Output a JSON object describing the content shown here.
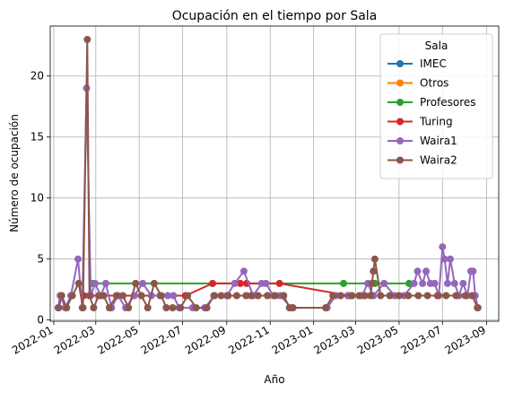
{
  "chart_data": {
    "type": "line",
    "title": "Ocupación en el tiempo por Sala",
    "xlabel": "Año",
    "ylabel": "Número de ocupación",
    "x_axis": "date",
    "xlim": [
      "2021-12-27",
      "2023-09-18"
    ],
    "ylim": [
      -0.1,
      24.1
    ],
    "x_ticks": [
      "2022-01",
      "2022-03",
      "2022-05",
      "2022-07",
      "2022-09",
      "2022-11",
      "2023-01",
      "2023-03",
      "2023-05",
      "2023-07",
      "2023-09"
    ],
    "y_ticks": [
      0,
      5,
      10,
      15,
      20
    ],
    "grid": true,
    "legend": {
      "title": "Sala",
      "placement": "top-right"
    },
    "series": [
      {
        "name": "IMEC",
        "color": "#1f77b4",
        "points": []
      },
      {
        "name": "Otros",
        "color": "#ff7f0e",
        "points": []
      },
      {
        "name": "Profesores",
        "color": "#2ca02c",
        "points": [
          {
            "x": "2022-02-25",
            "y": 3
          },
          {
            "x": "2023-02-12",
            "y": 3
          },
          {
            "x": "2023-03-28",
            "y": 3
          },
          {
            "x": "2023-05-15",
            "y": 3
          }
        ]
      },
      {
        "name": "Turing",
        "color": "#d62728",
        "points": [
          {
            "x": "2022-02-12",
            "y": 2
          },
          {
            "x": "2022-07-05",
            "y": 2
          },
          {
            "x": "2022-08-12",
            "y": 3
          },
          {
            "x": "2022-09-20",
            "y": 3
          },
          {
            "x": "2022-09-29",
            "y": 3
          },
          {
            "x": "2022-11-14",
            "y": 3
          },
          {
            "x": "2023-02-20",
            "y": 2
          }
        ]
      },
      {
        "name": "Waira1",
        "color": "#9467bd",
        "points": [
          {
            "x": "2022-01-07",
            "y": 1
          },
          {
            "x": "2022-01-10",
            "y": 2
          },
          {
            "x": "2022-01-17",
            "y": 1
          },
          {
            "x": "2022-01-25",
            "y": 2
          },
          {
            "x": "2022-02-04",
            "y": 5
          },
          {
            "x": "2022-02-10",
            "y": 1
          },
          {
            "x": "2022-02-16",
            "y": 19
          },
          {
            "x": "2022-02-22",
            "y": 2
          },
          {
            "x": "2022-02-28",
            "y": 3
          },
          {
            "x": "2022-03-08",
            "y": 2
          },
          {
            "x": "2022-03-15",
            "y": 3
          },
          {
            "x": "2022-03-23",
            "y": 1
          },
          {
            "x": "2022-04-01",
            "y": 2
          },
          {
            "x": "2022-04-12",
            "y": 1
          },
          {
            "x": "2022-04-24",
            "y": 2
          },
          {
            "x": "2022-05-06",
            "y": 3
          },
          {
            "x": "2022-05-18",
            "y": 2
          },
          {
            "x": "2022-05-30",
            "y": 2
          },
          {
            "x": "2022-06-10",
            "y": 2
          },
          {
            "x": "2022-06-18",
            "y": 2
          },
          {
            "x": "2022-06-26",
            "y": 1
          },
          {
            "x": "2022-07-15",
            "y": 1
          },
          {
            "x": "2022-08-01",
            "y": 1
          },
          {
            "x": "2022-08-15",
            "y": 2
          },
          {
            "x": "2022-09-01",
            "y": 2
          },
          {
            "x": "2022-09-12",
            "y": 3
          },
          {
            "x": "2022-09-25",
            "y": 4
          },
          {
            "x": "2022-10-08",
            "y": 2
          },
          {
            "x": "2022-10-20",
            "y": 3
          },
          {
            "x": "2022-10-26",
            "y": 3
          },
          {
            "x": "2022-11-05",
            "y": 2
          },
          {
            "x": "2022-11-15",
            "y": 2
          },
          {
            "x": "2022-12-01",
            "y": 1
          },
          {
            "x": "2023-01-20",
            "y": 1
          },
          {
            "x": "2023-02-01",
            "y": 2
          },
          {
            "x": "2023-02-18",
            "y": 2
          },
          {
            "x": "2023-03-10",
            "y": 2
          },
          {
            "x": "2023-03-18",
            "y": 3
          },
          {
            "x": "2023-03-26",
            "y": 2
          },
          {
            "x": "2023-04-10",
            "y": 3
          },
          {
            "x": "2023-04-25",
            "y": 2
          },
          {
            "x": "2023-05-08",
            "y": 2
          },
          {
            "x": "2023-05-22",
            "y": 3
          },
          {
            "x": "2023-05-27",
            "y": 4
          },
          {
            "x": "2023-06-03",
            "y": 3
          },
          {
            "x": "2023-06-08",
            "y": 4
          },
          {
            "x": "2023-06-14",
            "y": 3
          },
          {
            "x": "2023-06-20",
            "y": 3
          },
          {
            "x": "2023-06-26",
            "y": 2
          },
          {
            "x": "2023-07-01",
            "y": 6
          },
          {
            "x": "2023-07-04",
            "y": 5
          },
          {
            "x": "2023-07-08",
            "y": 3
          },
          {
            "x": "2023-07-12",
            "y": 5
          },
          {
            "x": "2023-07-18",
            "y": 3
          },
          {
            "x": "2023-07-24",
            "y": 2
          },
          {
            "x": "2023-07-30",
            "y": 3
          },
          {
            "x": "2023-08-05",
            "y": 2
          },
          {
            "x": "2023-08-10",
            "y": 4
          },
          {
            "x": "2023-08-13",
            "y": 4
          },
          {
            "x": "2023-08-16",
            "y": 2
          },
          {
            "x": "2023-08-20",
            "y": 1
          }
        ]
      },
      {
        "name": "Waira2",
        "color": "#8c564b",
        "points": [
          {
            "x": "2022-01-08",
            "y": 1
          },
          {
            "x": "2022-01-12",
            "y": 2
          },
          {
            "x": "2022-01-19",
            "y": 1
          },
          {
            "x": "2022-01-27",
            "y": 2
          },
          {
            "x": "2022-02-05",
            "y": 3
          },
          {
            "x": "2022-02-11",
            "y": 1
          },
          {
            "x": "2022-02-17",
            "y": 23
          },
          {
            "x": "2022-02-20",
            "y": 2
          },
          {
            "x": "2022-02-26",
            "y": 1
          },
          {
            "x": "2022-03-05",
            "y": 2
          },
          {
            "x": "2022-03-12",
            "y": 2
          },
          {
            "x": "2022-03-20",
            "y": 1
          },
          {
            "x": "2022-03-30",
            "y": 2
          },
          {
            "x": "2022-04-08",
            "y": 2
          },
          {
            "x": "2022-04-16",
            "y": 1
          },
          {
            "x": "2022-04-26",
            "y": 3
          },
          {
            "x": "2022-05-04",
            "y": 2
          },
          {
            "x": "2022-05-13",
            "y": 1
          },
          {
            "x": "2022-05-22",
            "y": 3
          },
          {
            "x": "2022-06-01",
            "y": 2
          },
          {
            "x": "2022-06-08",
            "y": 1
          },
          {
            "x": "2022-06-17",
            "y": 1
          },
          {
            "x": "2022-06-28",
            "y": 1
          },
          {
            "x": "2022-07-08",
            "y": 2
          },
          {
            "x": "2022-07-20",
            "y": 1
          },
          {
            "x": "2022-08-04",
            "y": 1
          },
          {
            "x": "2022-08-14",
            "y": 2
          },
          {
            "x": "2022-08-24",
            "y": 2
          },
          {
            "x": "2022-09-03",
            "y": 2
          },
          {
            "x": "2022-09-15",
            "y": 2
          },
          {
            "x": "2022-09-28",
            "y": 2
          },
          {
            "x": "2022-10-05",
            "y": 2
          },
          {
            "x": "2022-10-15",
            "y": 2
          },
          {
            "x": "2022-10-28",
            "y": 2
          },
          {
            "x": "2022-11-08",
            "y": 2
          },
          {
            "x": "2022-11-20",
            "y": 2
          },
          {
            "x": "2022-11-28",
            "y": 1
          },
          {
            "x": "2022-12-03",
            "y": 1
          },
          {
            "x": "2023-01-18",
            "y": 1
          },
          {
            "x": "2023-01-28",
            "y": 2
          },
          {
            "x": "2023-02-08",
            "y": 2
          },
          {
            "x": "2023-02-24",
            "y": 2
          },
          {
            "x": "2023-03-06",
            "y": 2
          },
          {
            "x": "2023-03-14",
            "y": 2
          },
          {
            "x": "2023-03-22",
            "y": 2
          },
          {
            "x": "2023-03-24",
            "y": 3
          },
          {
            "x": "2023-03-26",
            "y": 4
          },
          {
            "x": "2023-03-28",
            "y": 5
          },
          {
            "x": "2023-04-05",
            "y": 2
          },
          {
            "x": "2023-04-18",
            "y": 2
          },
          {
            "x": "2023-05-01",
            "y": 2
          },
          {
            "x": "2023-05-14",
            "y": 2
          },
          {
            "x": "2023-05-28",
            "y": 2
          },
          {
            "x": "2023-06-10",
            "y": 2
          },
          {
            "x": "2023-06-24",
            "y": 2
          },
          {
            "x": "2023-07-06",
            "y": 2
          },
          {
            "x": "2023-07-20",
            "y": 2
          },
          {
            "x": "2023-08-02",
            "y": 2
          },
          {
            "x": "2023-08-12",
            "y": 2
          },
          {
            "x": "2023-08-19",
            "y": 1
          }
        ]
      }
    ]
  }
}
